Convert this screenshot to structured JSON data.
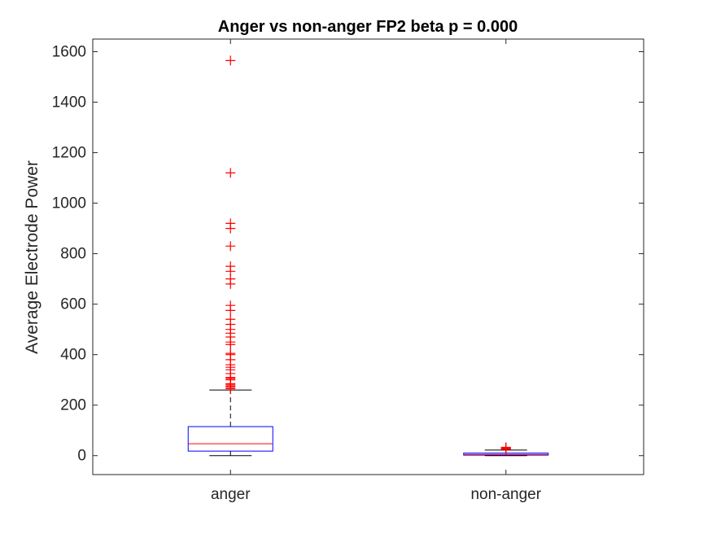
{
  "chart_data": {
    "type": "box",
    "title": "Anger vs non-anger FP2 beta p = 0.000",
    "xlabel": "",
    "ylabel": "Average Electrode Power",
    "ylim": [
      -75,
      1650
    ],
    "yticks": [
      0,
      200,
      400,
      600,
      800,
      1000,
      1200,
      1400,
      1600
    ],
    "categories": [
      "anger",
      "non-anger"
    ],
    "boxes": [
      {
        "category": "anger",
        "whisker_low": 0,
        "q1": 18,
        "median": 47,
        "q3": 115,
        "whisker_high": 260,
        "outliers": [
          265,
          270,
          275,
          280,
          285,
          300,
          305,
          310,
          325,
          340,
          350,
          360,
          380,
          400,
          405,
          440,
          450,
          470,
          485,
          500,
          520,
          540,
          575,
          595,
          680,
          700,
          730,
          750,
          830,
          900,
          920,
          1120,
          1565
        ]
      },
      {
        "category": "non-anger",
        "whisker_low": 0,
        "q1": 2,
        "median": 5,
        "q3": 10,
        "whisker_high": 22,
        "outliers": [
          25,
          27,
          29,
          31,
          33
        ]
      }
    ],
    "colors": {
      "box": "#0000ff",
      "median": "#ff0000",
      "outlier": "#ff0000",
      "whisker": "#000000"
    },
    "grid": false
  }
}
